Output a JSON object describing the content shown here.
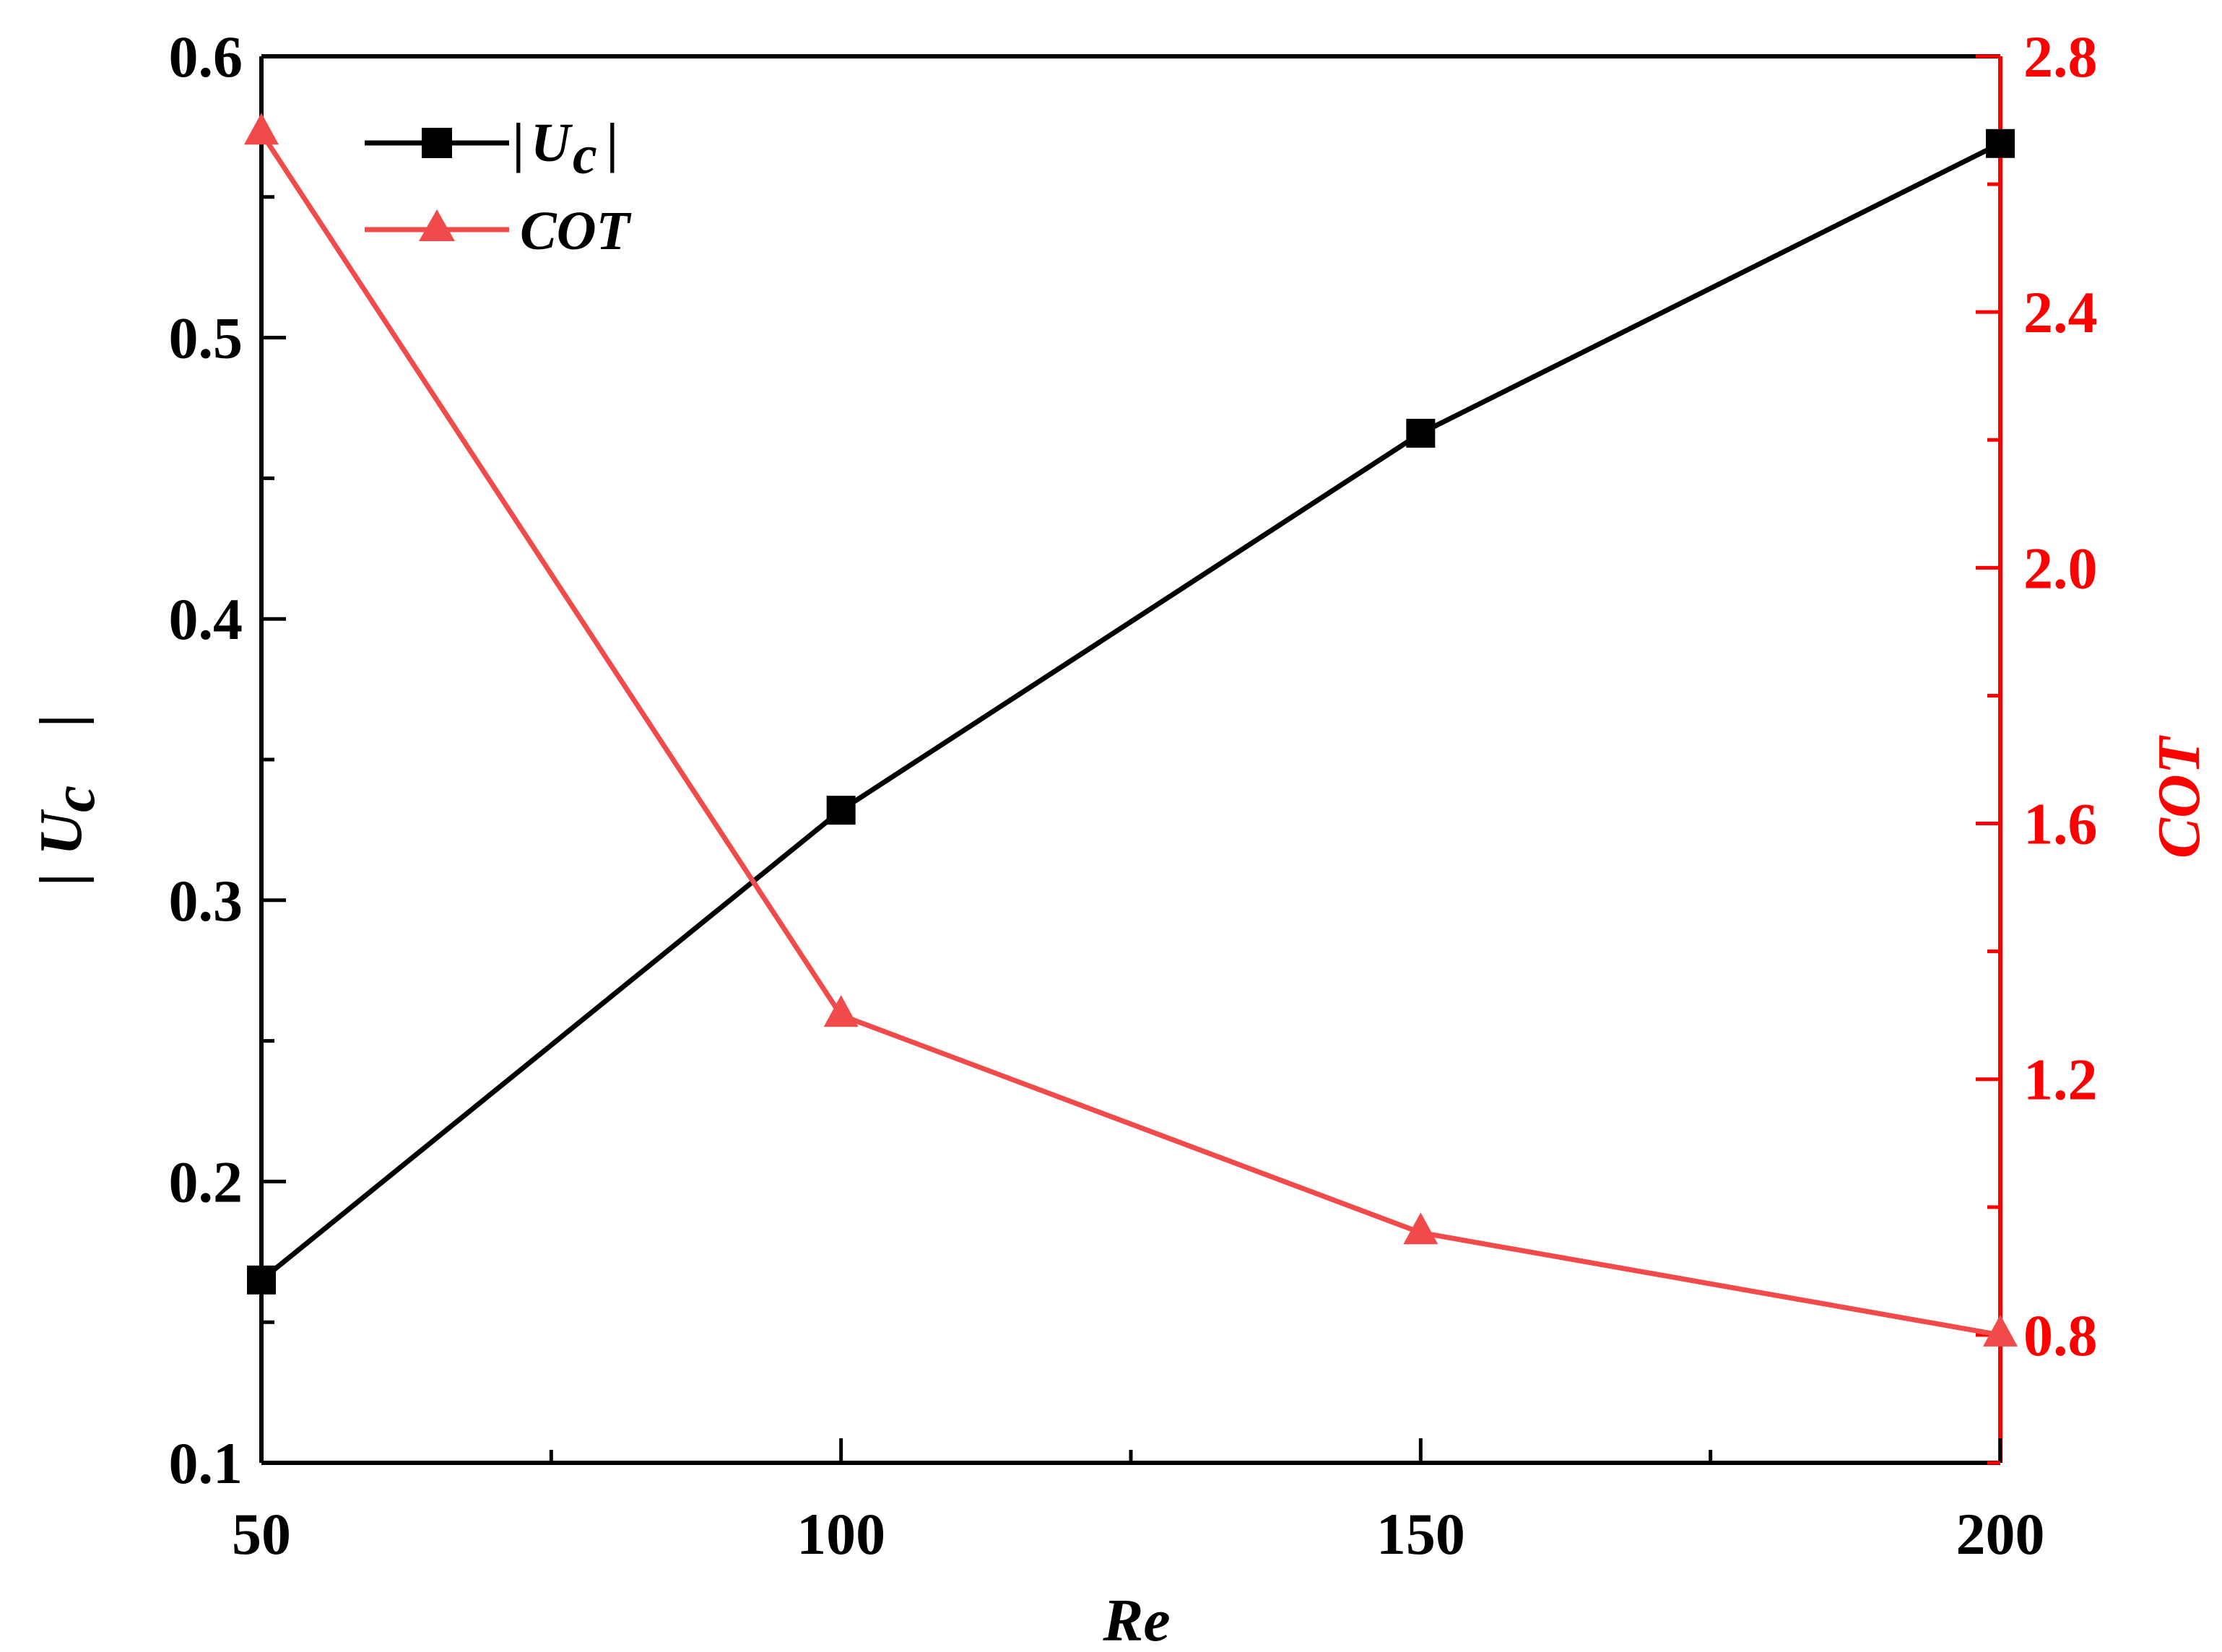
{
  "chart_data": {
    "type": "line",
    "x": [
      50,
      100,
      150,
      200
    ],
    "xlabel": "Re",
    "xlim": [
      50,
      200
    ],
    "xticks": [
      "50",
      "100",
      "150",
      "200"
    ],
    "series": [
      {
        "name": "|Uc|",
        "label_main": "U",
        "label_sub": "c",
        "axis": "left",
        "marker": "square",
        "color": "#000000",
        "values": [
          0.165,
          0.332,
          0.466,
          0.569
        ]
      },
      {
        "name": "COT",
        "axis": "right",
        "marker": "triangle",
        "color": "#f04a4a",
        "values": [
          2.68,
          1.3,
          0.96,
          0.8
        ]
      }
    ],
    "left_axis": {
      "label_main": "U",
      "label_sub": "c",
      "ylim": [
        0.1,
        0.6
      ],
      "ticks": [
        "0.1",
        "0.2",
        "0.3",
        "0.4",
        "0.5",
        "0.6"
      ],
      "color": "#000000"
    },
    "right_axis": {
      "label": "COT",
      "ylim": [
        0.6,
        2.8
      ],
      "ticks": [
        "0.8",
        "1.2",
        "1.6",
        "2.0",
        "2.4",
        "2.8"
      ],
      "color": "#ff0000"
    },
    "legend": {
      "placement": "top-left"
    },
    "grid": false
  }
}
